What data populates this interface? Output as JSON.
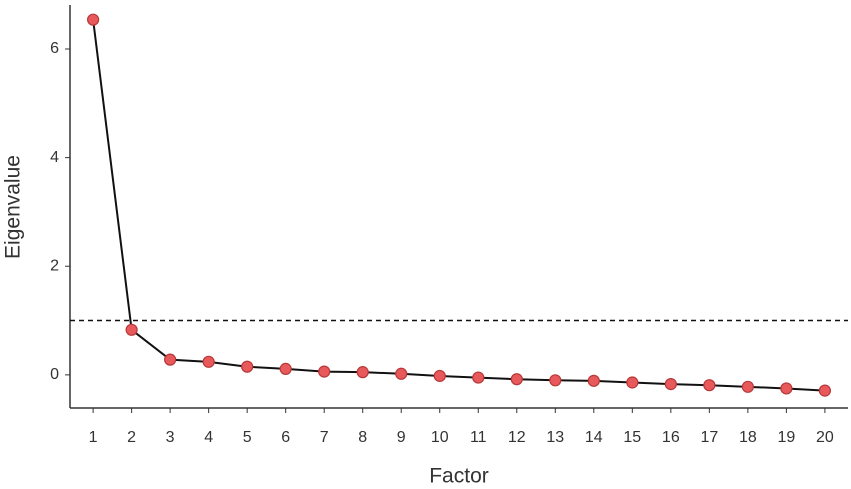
{
  "chart_data": {
    "type": "line",
    "x_label": "Factor",
    "y_label": "Eigenvalue",
    "x": [
      1,
      2,
      3,
      4,
      5,
      6,
      7,
      8,
      9,
      10,
      11,
      12,
      13,
      14,
      15,
      16,
      17,
      18,
      19,
      20
    ],
    "values": [
      6.54,
      0.83,
      0.28,
      0.24,
      0.15,
      0.11,
      0.06,
      0.05,
      0.02,
      -0.02,
      -0.05,
      -0.08,
      -0.1,
      -0.11,
      -0.14,
      -0.17,
      -0.19,
      -0.22,
      -0.25,
      -0.29
    ],
    "color": "#e8595b",
    "line_color": "#111111",
    "xlim": [
      0.4,
      20.6
    ],
    "xticks": [
      1,
      2,
      3,
      4,
      5,
      6,
      7,
      8,
      9,
      10,
      11,
      12,
      13,
      14,
      15,
      16,
      17,
      18,
      19,
      20
    ],
    "ylim": [
      -0.61,
      6.81
    ],
    "yticks": [
      0,
      2,
      4,
      6
    ],
    "hline": 1
  }
}
